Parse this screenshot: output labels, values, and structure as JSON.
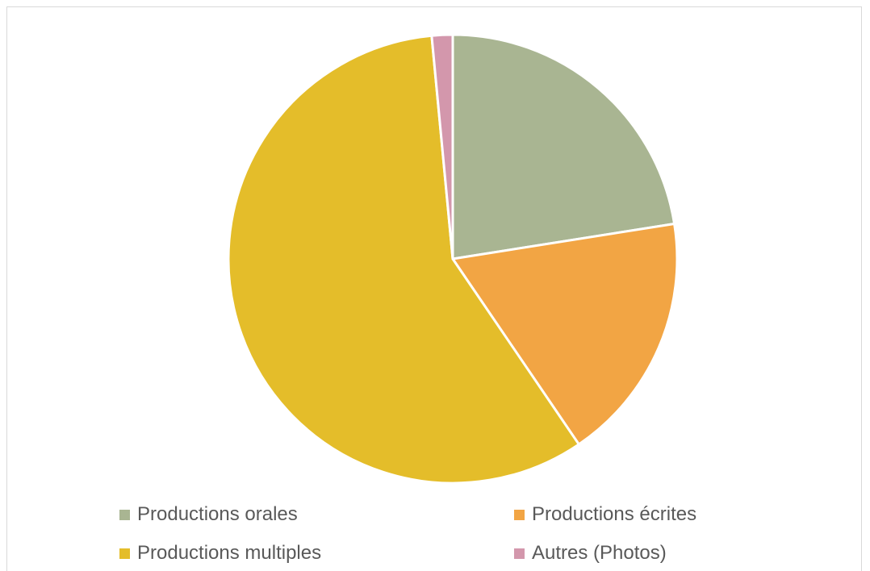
{
  "chart_data": {
    "type": "pie",
    "title": "",
    "slices": [
      {
        "label": "Productions orales",
        "value": 22.5,
        "color": "#a9b592"
      },
      {
        "label": "Productions écrites",
        "value": 18.0,
        "color": "#f2a544"
      },
      {
        "label": "Productions multiples",
        "value": 58.0,
        "color": "#e4bd2a"
      },
      {
        "label": "Autres (Photos)",
        "value": 1.5,
        "color": "#d397ac"
      }
    ],
    "legend_position": "bottom",
    "start_angle_deg": 0,
    "direction": "clockwise",
    "slice_border_color": "#ffffff"
  }
}
